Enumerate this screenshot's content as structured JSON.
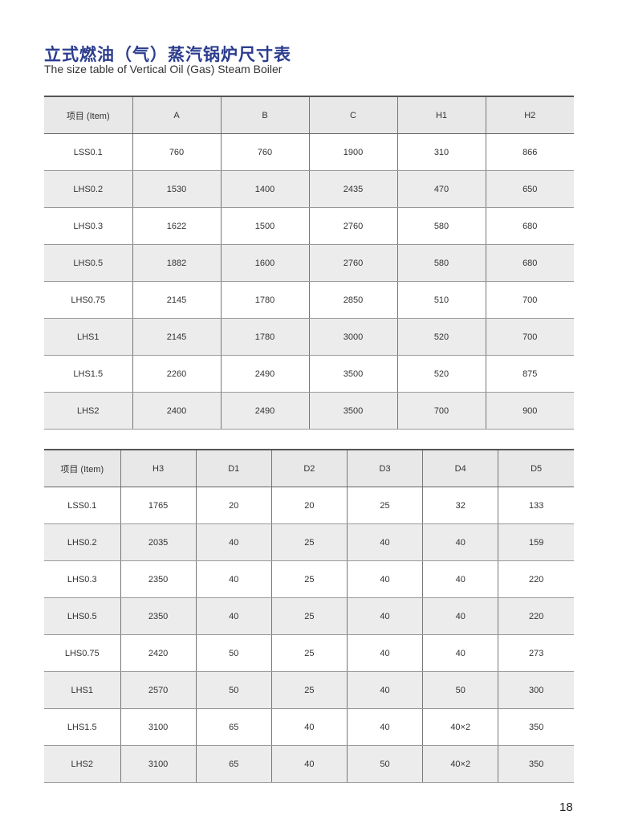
{
  "title_cn": "立式燃油（气）蒸汽锅炉尺寸表",
  "title_en": "The size table of Vertical Oil (Gas) Steam Boiler",
  "page_number": "18",
  "colors": {
    "title": "#2c3d8f",
    "header_bg": "#e8e8e8",
    "alt_row_bg": "#ececec"
  },
  "tables": [
    {
      "headers": [
        "项目 (Item)",
        "A",
        "B",
        "C",
        "H1",
        "H2"
      ],
      "rows": [
        [
          "LSS0.1",
          "760",
          "760",
          "1900",
          "310",
          "866"
        ],
        [
          "LHS0.2",
          "1530",
          "1400",
          "2435",
          "470",
          "650"
        ],
        [
          "LHS0.3",
          "1622",
          "1500",
          "2760",
          "580",
          "680"
        ],
        [
          "LHS0.5",
          "1882",
          "1600",
          "2760",
          "580",
          "680"
        ],
        [
          "LHS0.75",
          "2145",
          "1780",
          "2850",
          "510",
          "700"
        ],
        [
          "LHS1",
          "2145",
          "1780",
          "3000",
          "520",
          "700"
        ],
        [
          "LHS1.5",
          "2260",
          "2490",
          "3500",
          "520",
          "875"
        ],
        [
          "LHS2",
          "2400",
          "2490",
          "3500",
          "700",
          "900"
        ]
      ]
    },
    {
      "headers": [
        "项目 (Item)",
        "H3",
        "D1",
        "D2",
        "D3",
        "D4",
        "D5"
      ],
      "rows": [
        [
          "LSS0.1",
          "1765",
          "20",
          "20",
          "25",
          "32",
          "133"
        ],
        [
          "LHS0.2",
          "2035",
          "40",
          "25",
          "40",
          "40",
          "159"
        ],
        [
          "LHS0.3",
          "2350",
          "40",
          "25",
          "40",
          "40",
          "220"
        ],
        [
          "LHS0.5",
          "2350",
          "40",
          "25",
          "40",
          "40",
          "220"
        ],
        [
          "LHS0.75",
          "2420",
          "50",
          "25",
          "40",
          "40",
          "273"
        ],
        [
          "LHS1",
          "2570",
          "50",
          "25",
          "40",
          "50",
          "300"
        ],
        [
          "LHS1.5",
          "3100",
          "65",
          "40",
          "40",
          "40×2",
          "350"
        ],
        [
          "LHS2",
          "3100",
          "65",
          "40",
          "50",
          "40×2",
          "350"
        ]
      ]
    }
  ]
}
